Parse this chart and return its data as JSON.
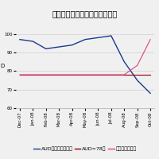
{
  "title": "サイゼリヤのデリバティブ取引",
  "x_labels": [
    "Dec-07",
    "Jan-08",
    "Feb-08",
    "Mar-08",
    "Apr-08",
    "May-08",
    "Jun-08",
    "Jul-08",
    "Aug-08",
    "Sep-08",
    "Oct-08"
  ],
  "aud_spot": [
    97,
    96,
    92,
    93,
    94,
    97,
    98,
    99,
    85,
    75,
    68
  ],
  "aud_fixed": [
    78,
    78,
    78,
    78,
    78,
    78,
    78,
    78,
    78,
    78,
    78
  ],
  "derivative": [
    78,
    78,
    78,
    78,
    78,
    78,
    78,
    78,
    78,
    83,
    97
  ],
  "spot_color": "#1a3a8f",
  "fixed_color": "#8b0000",
  "deriv_color": "#e0407f",
  "ylabel": "D",
  "legend_spot": "AUDスポットレート",
  "legend_fixed": "AUD=78円",
  "legend_deriv": "デリバティブの",
  "background_color": "#f0f0f0",
  "grid_color": "#d0d0d0",
  "title_fontsize": 7,
  "tick_fontsize": 4,
  "legend_fontsize": 4.5,
  "ylim_min": 60,
  "ylim_max": 108
}
